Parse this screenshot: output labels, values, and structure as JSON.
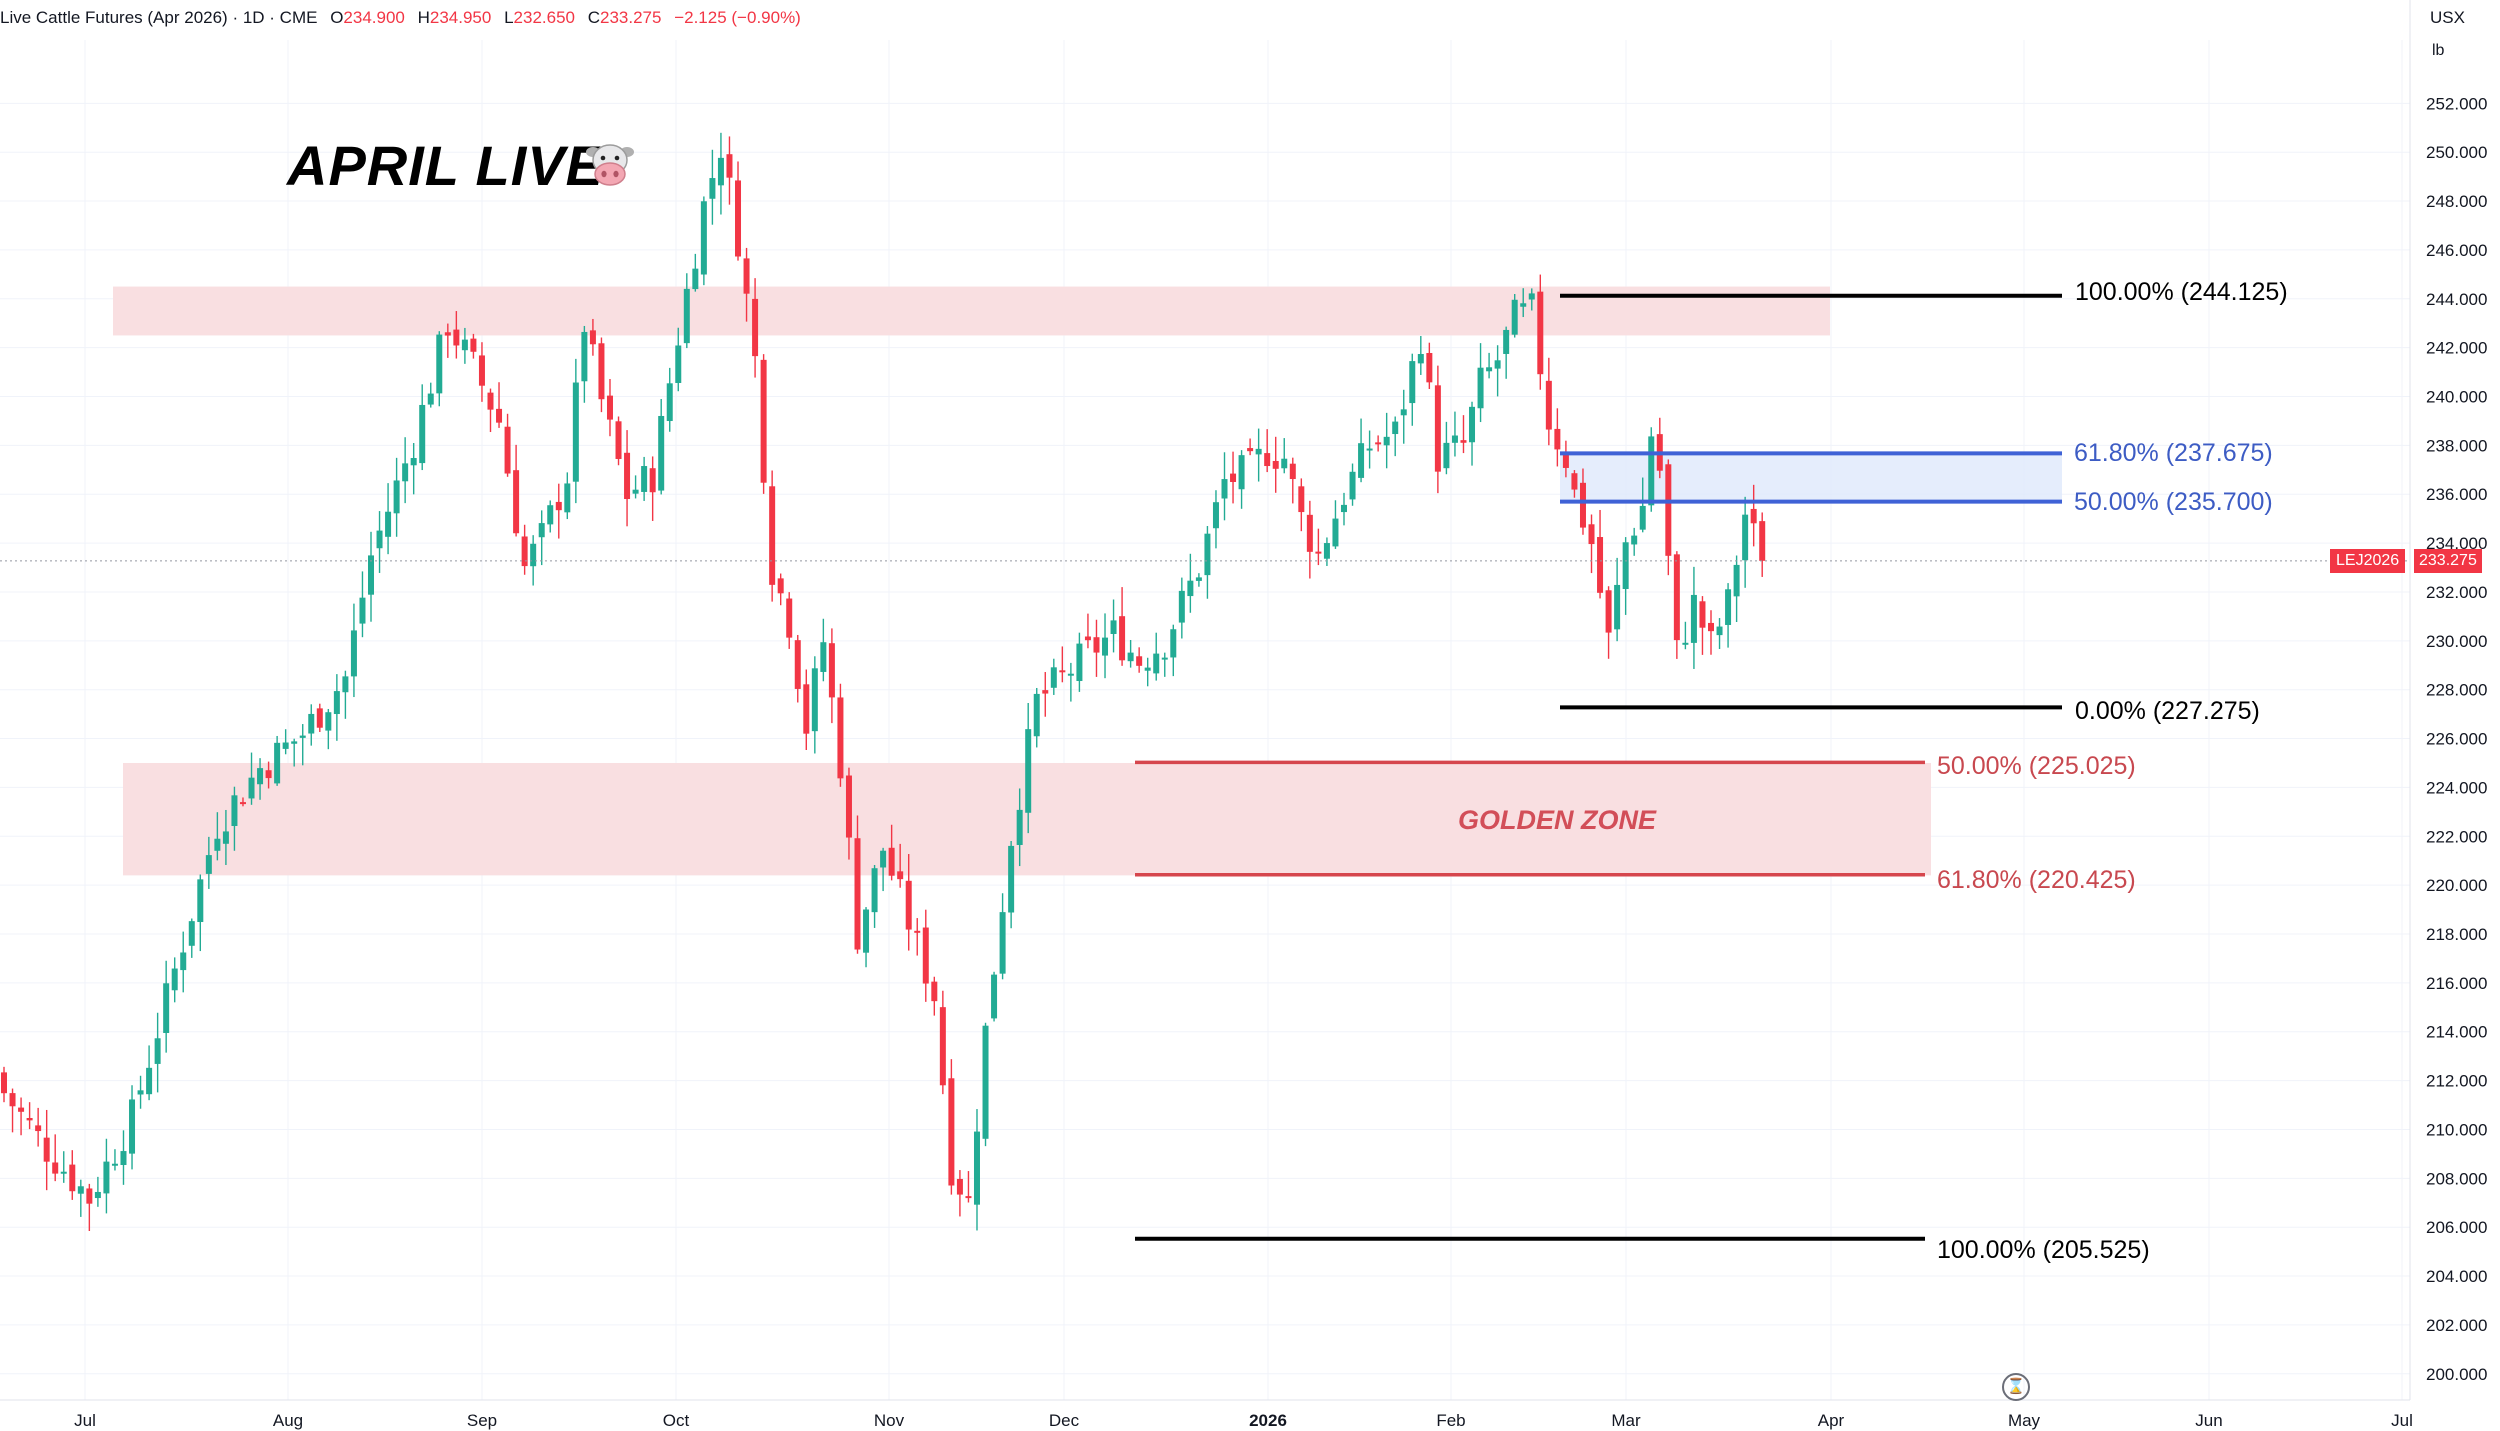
{
  "header": {
    "symbol_title": "Live Cattle Futures (Apr 2026) · 1D · CME",
    "open_label": "O",
    "open": "234.900",
    "high_label": "H",
    "high": "234.950",
    "low_label": "L",
    "low": "232.650",
    "close_label": "C",
    "close": "233.275",
    "change": "−2.125 (−0.90%)"
  },
  "title": "APRIL LIVE",
  "title_icon": "cow-face-icon",
  "axis": {
    "currency": "USX",
    "unit": "lb"
  },
  "price_marker": {
    "symbol": "LEJ2026",
    "value": "233.275"
  },
  "golden_zone_label": "GOLDEN ZONE",
  "fib_labels": {
    "top_100": "100.00% (244.125)",
    "f618_upper": "61.80% (237.675)",
    "f50_upper": "50.00% (235.700)",
    "zero": "0.00% (227.275)",
    "f50_lower": "50.00% (225.025)",
    "f618_lower": "61.80% (220.425)",
    "bottom_100": "100.00% (205.525)"
  },
  "colors": {
    "up": "#22ab94",
    "down": "#f23645",
    "zone_fill": "#f9dfe1",
    "fib_blue": "#3f62d6",
    "fib_red": "#d6464d",
    "fib_black": "#000000"
  },
  "chart_data": {
    "type": "candlestick",
    "ylim": [
      199.5,
      252.3
    ],
    "y_ticks": [
      "200.000",
      "202.000",
      "204.000",
      "206.000",
      "208.000",
      "210.000",
      "212.000",
      "214.000",
      "216.000",
      "218.000",
      "220.000",
      "222.000",
      "224.000",
      "226.000",
      "228.000",
      "230.000",
      "232.000",
      "234.000",
      "236.000",
      "238.000",
      "240.000",
      "242.000",
      "244.000",
      "246.000",
      "248.000",
      "250.000",
      "252.000"
    ],
    "x_ticks": [
      "Jul",
      "Aug",
      "Sep",
      "Oct",
      "Nov",
      "Dec",
      "2026",
      "Feb",
      "Mar",
      "Apr",
      "May",
      "Jun",
      "Jul"
    ],
    "last_price": 233.275,
    "levels": [
      {
        "label": "100.00%",
        "value": 244.125,
        "group": "upper"
      },
      {
        "label": "61.80%",
        "value": 237.675,
        "group": "upper"
      },
      {
        "label": "50.00%",
        "value": 235.7,
        "group": "upper"
      },
      {
        "label": "0.00%",
        "value": 227.275,
        "group": "upper"
      },
      {
        "label": "50.00%",
        "value": 225.025,
        "group": "lower"
      },
      {
        "label": "61.80%",
        "value": 220.425,
        "group": "lower"
      },
      {
        "label": "100.00%",
        "value": 205.525,
        "group": "lower"
      }
    ],
    "zones": [
      {
        "name": "resistance",
        "from": 242.5,
        "to": 244.5
      },
      {
        "name": "golden-zone",
        "from": 220.4,
        "to": 225.0
      }
    ],
    "close_path": [
      [
        0,
        211.5
      ],
      [
        5,
        209.2
      ],
      [
        10,
        207.2
      ],
      [
        15,
        210.5
      ],
      [
        25,
        222.5
      ],
      [
        30,
        224.8
      ],
      [
        35,
        226.2
      ],
      [
        40,
        228.5
      ],
      [
        43,
        233.5
      ],
      [
        48,
        238.2
      ],
      [
        52,
        243.0
      ],
      [
        55,
        241.2
      ],
      [
        58,
        239.0
      ],
      [
        61,
        233.0
      ],
      [
        63,
        234.2
      ],
      [
        66,
        236.8
      ],
      [
        68,
        243.0
      ],
      [
        70,
        239.8
      ],
      [
        73,
        236.0
      ],
      [
        76,
        236.8
      ],
      [
        79,
        242.5
      ],
      [
        82,
        247.8
      ],
      [
        84,
        250.3
      ],
      [
        86,
        246.5
      ],
      [
        88,
        241.5
      ],
      [
        90,
        233.0
      ],
      [
        92,
        230.8
      ],
      [
        94,
        226.5
      ],
      [
        96,
        230.0
      ],
      [
        98,
        225.0
      ],
      [
        100,
        218.0
      ],
      [
        103,
        221.5
      ],
      [
        106,
        218.5
      ],
      [
        109,
        215.5
      ],
      [
        111,
        208.5
      ],
      [
        113,
        207.0
      ],
      [
        115,
        214.0
      ],
      [
        118,
        222.0
      ],
      [
        121,
        227.5
      ],
      [
        124,
        228.5
      ],
      [
        127,
        229.5
      ],
      [
        130,
        230.3
      ],
      [
        133,
        229.2
      ],
      [
        136,
        230.0
      ],
      [
        140,
        233.0
      ],
      [
        143,
        236.5
      ],
      [
        146,
        237.0
      ],
      [
        148,
        237.8
      ],
      [
        150,
        237.5
      ],
      [
        152,
        235.0
      ],
      [
        154,
        233.5
      ],
      [
        157,
        236.0
      ],
      [
        160,
        238.0
      ],
      [
        163,
        238.5
      ],
      [
        166,
        242.5
      ],
      [
        168,
        237.5
      ],
      [
        171,
        238.0
      ],
      [
        173,
        240.5
      ],
      [
        175,
        241.5
      ],
      [
        177,
        243.2
      ],
      [
        179,
        243.5
      ],
      [
        181,
        239.0
      ],
      [
        183,
        237.5
      ],
      [
        184,
        236.0
      ],
      [
        186,
        234.0
      ],
      [
        188,
        230.0
      ],
      [
        190,
        234.0
      ],
      [
        192,
        235.5
      ],
      [
        193,
        238.5
      ],
      [
        194,
        237.0
      ],
      [
        196,
        229.5
      ],
      [
        198,
        231.5
      ],
      [
        200,
        229.8
      ],
      [
        202,
        231.5
      ],
      [
        204,
        235.2
      ],
      [
        206,
        233.3
      ]
    ]
  }
}
